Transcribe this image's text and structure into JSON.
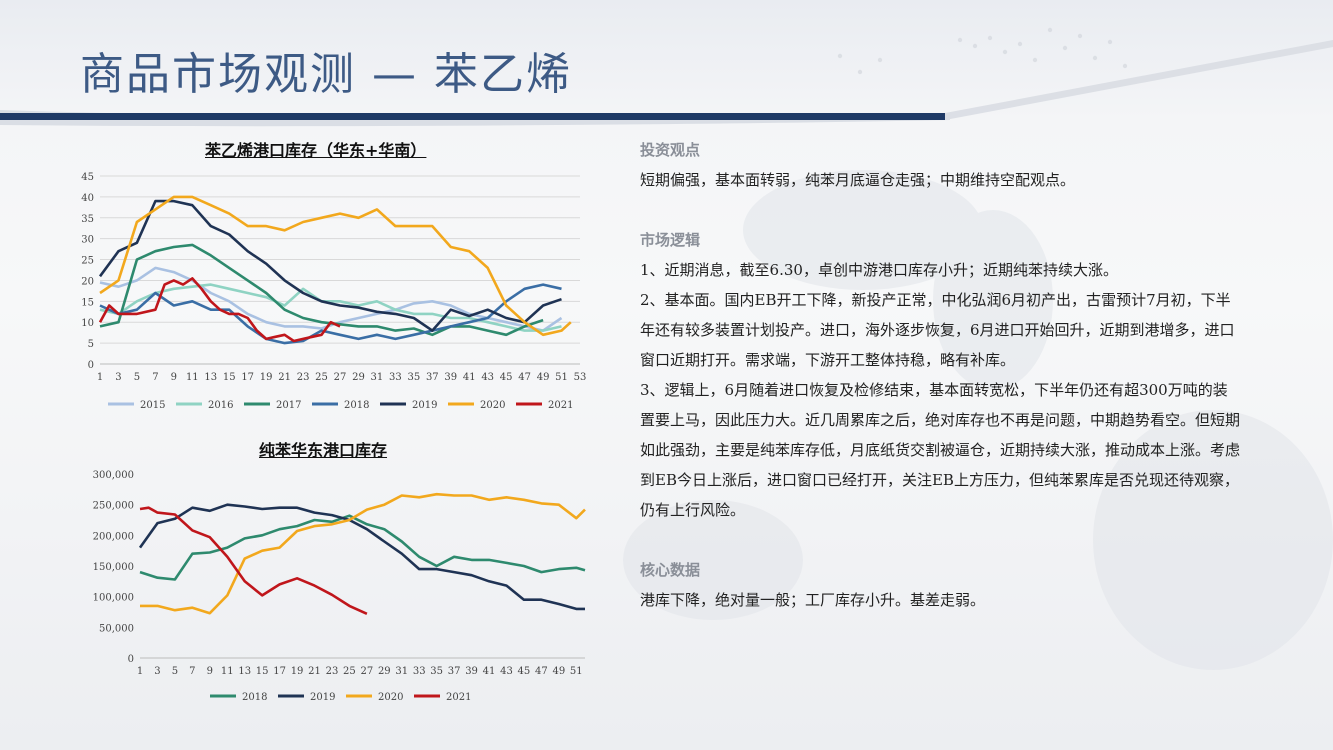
{
  "page_title": "商品市场观测 — 苯乙烯",
  "right_panel": {
    "sections": [
      {
        "heading": "投资观点",
        "paragraphs": [
          "短期偏强，基本面转弱，纯苯月底逼仓走强；中期维持空配观点。"
        ]
      },
      {
        "heading": "市场逻辑",
        "paragraphs": [
          "1、近期消息，截至6.30，卓创中游港口库存小升；近期纯苯持续大涨。",
          "2、基本面。国内EB开工下降，新投产正常，中化弘润6月初产出，古雷预计7月初，下半年还有较多装置计划投产。进口，海外逐步恢复，6月进口开始回升，近期到港增多，进口窗口近期打开。需求端，下游开工整体持稳，略有补库。",
          "3、逻辑上，6月随着进口恢复及检修结束，基本面转宽松，下半年仍还有超300万吨的装置要上马，因此压力大。近几周累库之后，绝对库存也不再是问题，中期趋势看空。但短期如此强劲，主要是纯苯库存低，月底纸货交割被逼仓，近期持续大涨，推动成本上涨。考虑到EB今日上涨后，进口窗口已经打开，关注EB上方压力，但纯苯累库是否兑现还待观察，仍有上行风险。"
        ]
      },
      {
        "heading": "核心数据",
        "paragraphs": [
          "港库下降，绝对量一般；工厂库存小升。基差走弱。"
        ]
      }
    ]
  },
  "colors": {
    "title": "#3d5a85",
    "accent_bar": "#1f3a66"
  },
  "chart_data": [
    {
      "type": "line",
      "title": "苯乙烯港口库存（华东+华南）",
      "xlabel": "",
      "ylabel": "",
      "ylim": [
        0,
        45
      ],
      "yticks": [
        "0",
        "5",
        "10",
        "15",
        "20",
        "25",
        "30",
        "35",
        "40",
        "45"
      ],
      "xticks": [
        "1",
        "3",
        "5",
        "7",
        "9",
        "11",
        "13",
        "15",
        "17",
        "19",
        "21",
        "23",
        "25",
        "27",
        "29",
        "31",
        "33",
        "35",
        "37",
        "39",
        "41",
        "43",
        "45",
        "47",
        "49",
        "51",
        "53"
      ],
      "x_range": [
        1,
        53
      ],
      "legend_position": "bottom",
      "grid": true,
      "series": [
        {
          "name": "2015",
          "color": "#a9c1e2",
          "x": [
            1,
            3,
            5,
            7,
            9,
            11,
            13,
            15,
            17,
            19,
            21,
            23,
            25,
            27,
            29,
            31,
            33,
            35,
            37,
            39,
            41,
            43,
            45,
            47,
            49,
            51
          ],
          "values": [
            19.5,
            18.5,
            20,
            23,
            22,
            20,
            17,
            15,
            12,
            10,
            9,
            9,
            8.5,
            10,
            11,
            12,
            13,
            14.5,
            15,
            14,
            12,
            11,
            10,
            9,
            8,
            11
          ]
        },
        {
          "name": "2016",
          "color": "#8fd3c3",
          "x": [
            1,
            3,
            5,
            7,
            9,
            11,
            13,
            15,
            17,
            19,
            21,
            23,
            25,
            27,
            29,
            31,
            33,
            35,
            37,
            39,
            41,
            43,
            45,
            47,
            49,
            51
          ],
          "values": [
            13,
            12,
            15,
            17,
            18,
            18.5,
            19,
            18,
            17,
            16,
            14,
            18,
            15,
            15,
            14,
            15,
            13,
            12,
            12,
            11,
            11,
            10,
            9,
            8,
            8,
            9
          ]
        },
        {
          "name": "2017",
          "color": "#2e8a6e",
          "x": [
            1,
            3,
            5,
            7,
            9,
            11,
            13,
            15,
            17,
            19,
            21,
            23,
            25,
            27,
            29,
            31,
            33,
            35,
            37,
            39,
            41,
            43,
            45,
            47,
            49
          ],
          "values": [
            9,
            10,
            25,
            27,
            28,
            28.5,
            26,
            23,
            20,
            17,
            13,
            11,
            10,
            9.5,
            9,
            9,
            8,
            8.5,
            7,
            9,
            9,
            8,
            7,
            9,
            10.5
          ]
        },
        {
          "name": "2018",
          "color": "#3a6ea5",
          "x": [
            1,
            3,
            5,
            7,
            9,
            11,
            13,
            15,
            17,
            19,
            21,
            23,
            25,
            27,
            29,
            31,
            33,
            35,
            37,
            39,
            41,
            43,
            45,
            47,
            49,
            51
          ],
          "values": [
            14,
            12,
            13,
            17,
            14,
            15,
            13,
            13,
            9,
            6,
            5,
            5.5,
            8,
            7,
            6,
            7,
            6,
            7,
            8,
            9,
            10,
            11,
            15,
            18,
            19,
            18
          ]
        },
        {
          "name": "2019",
          "color": "#1f3354",
          "x": [
            1,
            3,
            5,
            7,
            9,
            11,
            13,
            15,
            17,
            19,
            21,
            23,
            25,
            27,
            29,
            31,
            33,
            35,
            37,
            39,
            41,
            43,
            45,
            47,
            49,
            51
          ],
          "values": [
            21,
            27,
            29,
            39,
            39,
            38,
            33,
            31,
            27,
            24,
            20,
            17,
            15,
            14,
            13.5,
            12.5,
            12,
            11,
            8,
            13,
            11.5,
            13,
            11,
            10,
            14,
            15.5
          ]
        },
        {
          "name": "2020",
          "color": "#f2a81d",
          "x": [
            1,
            3,
            5,
            7,
            9,
            11,
            13,
            15,
            17,
            19,
            21,
            23,
            25,
            27,
            29,
            31,
            33,
            35,
            37,
            39,
            41,
            43,
            45,
            47,
            49,
            51,
            52
          ],
          "values": [
            17,
            20,
            34,
            37,
            40,
            40,
            38,
            36,
            33,
            33,
            32,
            34,
            35,
            36,
            35,
            37,
            33,
            33,
            33,
            28,
            27,
            23,
            14,
            10,
            7,
            8,
            10
          ]
        },
        {
          "name": "2021",
          "color": "#c0161b",
          "x": [
            1,
            2,
            3,
            5,
            7,
            8,
            9,
            10,
            11,
            12,
            13,
            14,
            15,
            16,
            17,
            18,
            19,
            20,
            21,
            22,
            23,
            24,
            25,
            26,
            27
          ],
          "values": [
            10,
            14,
            12,
            12,
            13,
            19,
            20,
            19,
            20.5,
            18,
            15,
            13,
            12,
            12,
            11,
            8,
            6,
            6.5,
            7,
            5.5,
            6,
            6.5,
            7,
            10,
            9
          ]
        }
      ]
    },
    {
      "type": "line",
      "title": "纯苯华东港口库存",
      "xlabel": "",
      "ylabel": "",
      "ylim": [
        0,
        300000
      ],
      "yticks": [
        "0",
        "50,000",
        "100,000",
        "150,000",
        "200,000",
        "250,000",
        "300,000"
      ],
      "xticks": [
        "1",
        "3",
        "5",
        "7",
        "9",
        "11",
        "13",
        "15",
        "17",
        "19",
        "21",
        "23",
        "25",
        "27",
        "29",
        "31",
        "33",
        "35",
        "37",
        "39",
        "41",
        "43",
        "45",
        "47",
        "49",
        "51"
      ],
      "x_range": [
        1,
        52
      ],
      "legend_position": "bottom",
      "grid": false,
      "series": [
        {
          "name": "2018",
          "color": "#2e8a6e",
          "x": [
            1,
            3,
            5,
            7,
            9,
            11,
            13,
            15,
            17,
            19,
            21,
            23,
            25,
            27,
            29,
            31,
            33,
            35,
            37,
            39,
            41,
            43,
            45,
            47,
            49,
            51,
            52
          ],
          "values": [
            140000,
            131000,
            128000,
            170000,
            172000,
            180000,
            195000,
            200000,
            210000,
            215000,
            225000,
            222000,
            232000,
            218000,
            210000,
            190000,
            165000,
            150000,
            165000,
            160000,
            160000,
            155000,
            150000,
            140000,
            145000,
            147000,
            143000
          ]
        },
        {
          "name": "2019",
          "color": "#1f3354",
          "x": [
            1,
            3,
            5,
            7,
            9,
            11,
            13,
            15,
            17,
            19,
            21,
            23,
            25,
            27,
            29,
            31,
            33,
            35,
            37,
            39,
            41,
            43,
            45,
            47,
            49,
            51,
            52
          ],
          "values": [
            180000,
            220000,
            227000,
            245000,
            240000,
            250000,
            247000,
            243000,
            245000,
            245000,
            237000,
            233000,
            225000,
            210000,
            190000,
            170000,
            145000,
            145000,
            140000,
            135000,
            125000,
            118000,
            95000,
            95000,
            88000,
            80000,
            80000
          ]
        },
        {
          "name": "2020",
          "color": "#f2a81d",
          "x": [
            1,
            3,
            5,
            7,
            9,
            11,
            13,
            15,
            17,
            19,
            21,
            23,
            25,
            27,
            29,
            31,
            33,
            35,
            37,
            39,
            41,
            43,
            45,
            47,
            49,
            51,
            52
          ],
          "values": [
            85000,
            85000,
            78000,
            82000,
            73000,
            102000,
            162000,
            175000,
            180000,
            207000,
            215000,
            218000,
            225000,
            242000,
            250000,
            265000,
            262000,
            267000,
            265000,
            265000,
            258000,
            262000,
            258000,
            252000,
            250000,
            228000,
            242000
          ]
        },
        {
          "name": "2021",
          "color": "#c0161b",
          "x": [
            1,
            2,
            3,
            5,
            7,
            9,
            11,
            13,
            15,
            17,
            19,
            21,
            23,
            25,
            27
          ],
          "values": [
            243000,
            245000,
            237000,
            234000,
            208000,
            197000,
            165000,
            125000,
            102000,
            120000,
            130000,
            118000,
            103000,
            85000,
            72000
          ]
        }
      ]
    }
  ]
}
